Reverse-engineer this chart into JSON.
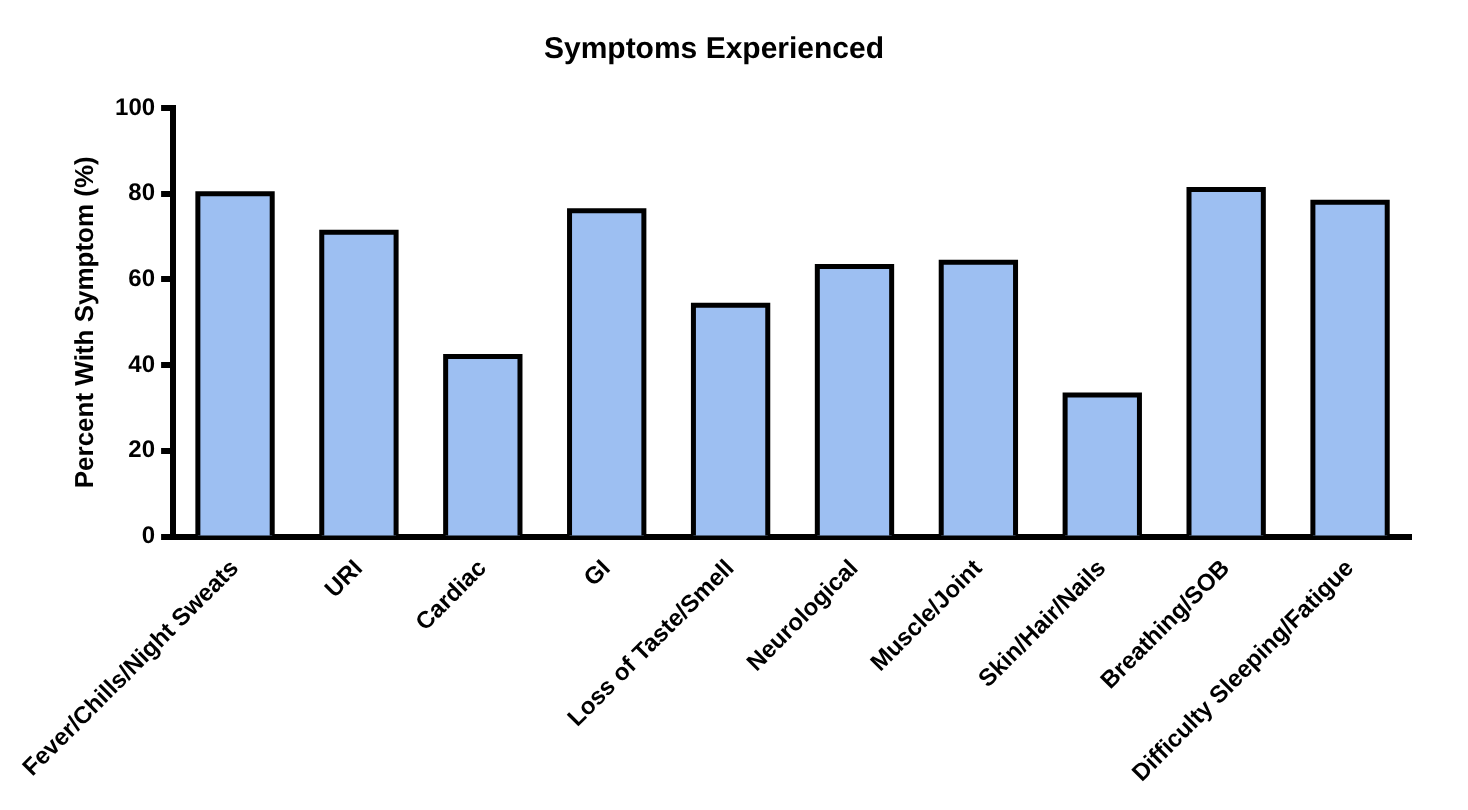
{
  "chart_data": {
    "type": "bar",
    "title": "Symptoms Experienced",
    "ylabel": "Percent With Symptom (%)",
    "categories": [
      "Fever/Chills/Night Sweats",
      "URI",
      "Cardiac",
      "GI",
      "Loss of Taste/Smell",
      "Neurological",
      "Muscle/Joint",
      "Skin/Hair/Nails",
      "Breathing/SOB",
      "Difficulty Sleeping/Fatigue"
    ],
    "values": [
      80,
      71,
      42,
      76,
      54,
      63,
      64,
      33,
      81,
      78
    ],
    "color": "#9dbff2",
    "ylim": [
      0,
      100
    ],
    "yticks": [
      0,
      20,
      40,
      60,
      80,
      100
    ],
    "grid": false,
    "legend": false
  }
}
